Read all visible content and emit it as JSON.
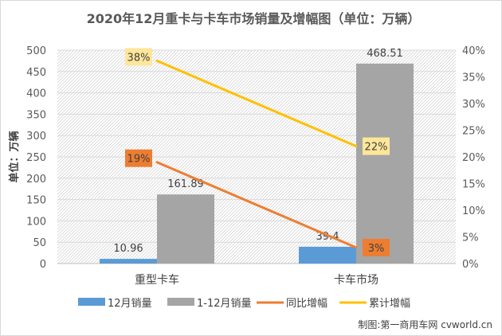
{
  "chart_data": {
    "type": "bar",
    "title": "2020年12月重卡与卡车市场销量及增幅图（单位：万辆）",
    "ylabel": "单位：万辆",
    "categories": [
      "重型卡车",
      "卡车市场"
    ],
    "series": [
      {
        "name": "12月销量",
        "kind": "bar",
        "axis": "left",
        "color": "#5b9bd5",
        "values": [
          10.96,
          39.4
        ],
        "labels": [
          "10.96",
          "39.4"
        ]
      },
      {
        "name": "1-12月销量",
        "kind": "bar",
        "axis": "left",
        "color": "#a5a5a5",
        "values": [
          161.89,
          468.51
        ],
        "labels": [
          "161.89",
          "468.51"
        ]
      },
      {
        "name": "同比增幅",
        "kind": "line",
        "axis": "right",
        "color": "#ed7d31",
        "label_bg": "#ed7d31",
        "values": [
          19,
          3
        ],
        "labels": [
          "19%",
          "3%"
        ]
      },
      {
        "name": "累计增幅",
        "kind": "line",
        "axis": "right",
        "color": "#ffc000",
        "label_bg": "#ffe699",
        "values": [
          38,
          22
        ],
        "labels": [
          "38%",
          "22%"
        ]
      }
    ],
    "y_left": {
      "min": 0,
      "max": 500,
      "step": 50,
      "ticks": [
        "0",
        "50",
        "100",
        "150",
        "200",
        "250",
        "300",
        "350",
        "400",
        "450",
        "500"
      ]
    },
    "y_right": {
      "min": 0,
      "max": 40,
      "step": 5,
      "ticks": [
        "0%",
        "5%",
        "10%",
        "15%",
        "20%",
        "25%",
        "30%",
        "35%",
        "40%"
      ]
    },
    "legend_position": "bottom",
    "grid": true,
    "plot_background": "hatched",
    "source_note": "制图:第一商用车网 cvworld.cn"
  }
}
